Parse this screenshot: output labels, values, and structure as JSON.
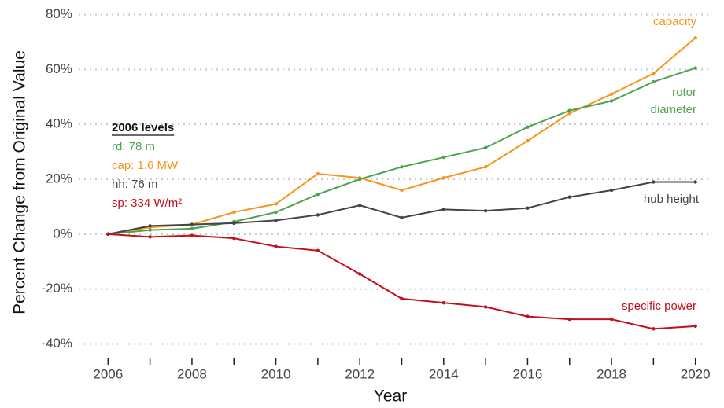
{
  "chart_data": {
    "type": "line",
    "x": [
      2006,
      2007,
      2008,
      2009,
      2010,
      2011,
      2012,
      2013,
      2014,
      2015,
      2016,
      2017,
      2018,
      2019,
      2020
    ],
    "series": [
      {
        "name": "capacity",
        "color": "#f7941d",
        "values": [
          0,
          2.5,
          3.5,
          8,
          11,
          22,
          20.5,
          16,
          20.5,
          24.5,
          34,
          44,
          51,
          58.5,
          71.5
        ]
      },
      {
        "name": "rotor diameter",
        "color": "#4ea24e",
        "values": [
          0,
          1.5,
          2,
          4.5,
          8,
          14.5,
          20,
          24.5,
          28,
          31.5,
          39,
          45,
          48.5,
          55.5,
          60.5
        ]
      },
      {
        "name": "hub height",
        "color": "#444444",
        "values": [
          0,
          3,
          3.5,
          4,
          5,
          7,
          10.5,
          6,
          9,
          8.5,
          9.5,
          13.5,
          16,
          19,
          19
        ]
      },
      {
        "name": "specific power",
        "color": "#c0111c",
        "values": [
          0,
          -1,
          -0.5,
          -1.5,
          -4.5,
          -6,
          -14.5,
          -23.5,
          -25,
          -26.5,
          -30,
          -31,
          -31,
          -34.5,
          -33.5
        ]
      }
    ],
    "xlabel": "Year",
    "ylabel": "Percent Change from Original Value",
    "xlim": [
      2005.3,
      2020.4
    ],
    "ylim": [
      -45,
      83
    ],
    "xticks": [
      2006,
      2008,
      2010,
      2012,
      2014,
      2016,
      2018,
      2020
    ],
    "xminor_ticks": [
      2007,
      2009,
      2011,
      2013,
      2015,
      2017,
      2019
    ],
    "yticks": [
      {
        "value": -40,
        "label": "-40%"
      },
      {
        "value": -20,
        "label": "-20%"
      },
      {
        "value": 0,
        "label": "0%"
      },
      {
        "value": 20,
        "label": "20%"
      },
      {
        "value": 40,
        "label": "40%"
      },
      {
        "value": 60,
        "label": "60%"
      },
      {
        "value": 80,
        "label": "80%"
      }
    ],
    "grid": true,
    "annotations": {
      "title": "2006 levels",
      "lines": [
        {
          "text": "rd: 78 m",
          "color": "#4ea24e"
        },
        {
          "text": "cap: 1.6 MW",
          "color": "#f7941d"
        },
        {
          "text": "hh: 76 m",
          "color": "#444444"
        },
        {
          "text": "sp: 334 W/m²",
          "color": "#c0111c"
        }
      ]
    }
  }
}
